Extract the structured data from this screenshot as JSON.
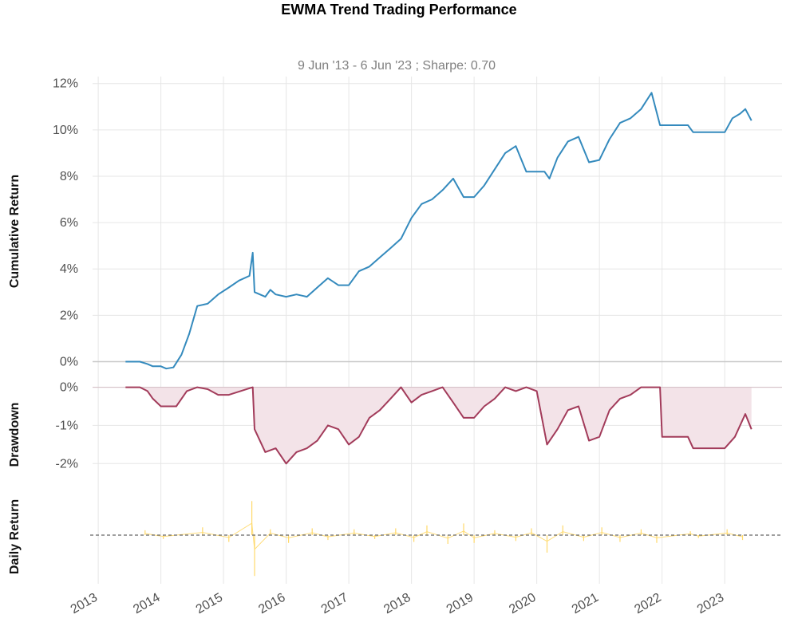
{
  "chart_data": [
    {
      "panel": "cumulative_return",
      "type": "line",
      "title": "EWMA Trend Trading Performance",
      "subtitle": "9 Jun '13 -  6 Jun '23 ;  Sharpe: 0.70",
      "ylabel": "Cumulative Return",
      "ylim": [
        -0.5,
        12.3
      ],
      "yticks": [
        "0%",
        "2%",
        "4%",
        "6%",
        "8%",
        "10%",
        "12%"
      ],
      "ytick_values": [
        0,
        2,
        4,
        6,
        8,
        10,
        12
      ],
      "grid": true,
      "color": "#348ABD",
      "x": [
        "2013-06-09",
        "2013-09-01",
        "2013-10-15",
        "2013-11-15",
        "2014-01-01",
        "2014-02-01",
        "2014-03-15",
        "2014-05-01",
        "2014-06-15",
        "2014-08-01",
        "2014-10-01",
        "2014-12-01",
        "2015-02-01",
        "2015-04-01",
        "2015-06-01",
        "2015-06-20",
        "2015-07-01",
        "2015-09-01",
        "2015-10-01",
        "2015-11-01",
        "2016-01-01",
        "2016-03-01",
        "2016-05-01",
        "2016-07-01",
        "2016-09-01",
        "2016-11-01",
        "2017-01-01",
        "2017-03-01",
        "2017-05-01",
        "2017-07-01",
        "2017-09-01",
        "2017-11-01",
        "2018-01-01",
        "2018-03-01",
        "2018-05-01",
        "2018-07-01",
        "2018-09-01",
        "2018-11-01",
        "2019-01-01",
        "2019-03-01",
        "2019-05-01",
        "2019-07-01",
        "2019-09-01",
        "2019-11-01",
        "2020-01-01",
        "2020-02-15",
        "2020-03-15",
        "2020-05-01",
        "2020-07-01",
        "2020-09-01",
        "2020-11-01",
        "2021-01-01",
        "2021-03-01",
        "2021-05-01",
        "2021-07-01",
        "2021-09-01",
        "2021-11-01",
        "2021-12-20",
        "2022-01-01",
        "2022-03-01",
        "2022-06-01",
        "2022-07-01",
        "2022-09-01",
        "2022-11-01",
        "2023-01-01",
        "2023-02-15",
        "2023-04-01",
        "2023-05-01",
        "2023-06-06"
      ],
      "values": [
        0.0,
        0.0,
        -0.1,
        -0.2,
        -0.2,
        -0.3,
        -0.25,
        0.3,
        1.2,
        2.4,
        2.5,
        2.9,
        3.2,
        3.5,
        3.7,
        4.7,
        3.0,
        2.8,
        3.1,
        2.9,
        2.8,
        2.9,
        2.8,
        3.2,
        3.6,
        3.3,
        3.3,
        3.9,
        4.1,
        4.5,
        4.9,
        5.3,
        6.2,
        6.8,
        7.0,
        7.4,
        7.9,
        7.1,
        7.1,
        7.6,
        8.3,
        9.0,
        9.3,
        8.2,
        8.2,
        8.2,
        7.9,
        8.8,
        9.5,
        9.7,
        8.6,
        8.7,
        9.6,
        10.3,
        10.5,
        10.9,
        11.6,
        10.2,
        10.2,
        10.2,
        10.2,
        9.9,
        9.9,
        9.9,
        9.9,
        10.5,
        10.7,
        10.9,
        10.4
      ]
    },
    {
      "panel": "drawdown",
      "type": "area",
      "ylabel": "Drawdown",
      "ylim": [
        -2.6,
        0.2
      ],
      "yticks": [
        "0%",
        "-1%",
        "-2%"
      ],
      "ytick_values": [
        0,
        -1,
        -2
      ],
      "grid": true,
      "color": "#A23B5A",
      "fill": "#F3E3E8",
      "x": [
        "2013-06-09",
        "2013-09-01",
        "2013-10-15",
        "2013-11-15",
        "2014-01-01",
        "2014-04-01",
        "2014-06-01",
        "2014-08-01",
        "2014-10-01",
        "2014-12-01",
        "2015-02-01",
        "2015-06-20",
        "2015-07-01",
        "2015-09-01",
        "2015-11-01",
        "2016-01-01",
        "2016-03-01",
        "2016-05-01",
        "2016-07-01",
        "2016-09-01",
        "2016-11-01",
        "2017-01-01",
        "2017-03-01",
        "2017-05-01",
        "2017-07-01",
        "2017-09-01",
        "2017-11-01",
        "2018-01-01",
        "2018-03-01",
        "2018-05-01",
        "2018-07-01",
        "2018-09-01",
        "2018-11-01",
        "2019-01-01",
        "2019-03-01",
        "2019-05-01",
        "2019-07-01",
        "2019-09-01",
        "2019-11-01",
        "2020-01-01",
        "2020-03-01",
        "2020-05-01",
        "2020-07-01",
        "2020-09-01",
        "2020-11-01",
        "2021-01-01",
        "2021-03-01",
        "2021-05-01",
        "2021-07-01",
        "2021-09-01",
        "2021-11-01",
        "2021-12-20",
        "2022-01-01",
        "2022-06-01",
        "2022-07-01",
        "2022-11-01",
        "2023-01-01",
        "2023-03-01",
        "2023-05-01",
        "2023-06-06"
      ],
      "values": [
        0.0,
        0.0,
        -0.1,
        -0.3,
        -0.5,
        -0.5,
        -0.1,
        0.0,
        -0.05,
        -0.2,
        -0.2,
        0.0,
        -1.1,
        -1.7,
        -1.6,
        -2.0,
        -1.7,
        -1.6,
        -1.4,
        -1.0,
        -1.1,
        -1.5,
        -1.3,
        -0.8,
        -0.6,
        -0.3,
        0.0,
        -0.4,
        -0.2,
        -0.1,
        0.0,
        -0.4,
        -0.8,
        -0.8,
        -0.5,
        -0.3,
        0.0,
        -0.1,
        0.0,
        -0.1,
        -1.5,
        -1.1,
        -0.6,
        -0.5,
        -1.4,
        -1.3,
        -0.6,
        -0.3,
        -0.2,
        0.0,
        0.0,
        0.0,
        -1.3,
        -1.3,
        -1.6,
        -1.6,
        -1.6,
        -1.3,
        -0.7,
        -1.1
      ]
    },
    {
      "panel": "daily_return",
      "type": "line",
      "ylabel": "Daily Return",
      "color": "#FFD96A",
      "baseline_color": "#666666",
      "ylim": [
        -0.5,
        0.5
      ],
      "x": [
        "2013-10-01",
        "2014-01-15",
        "2014-04-01",
        "2014-09-01",
        "2015-02-01",
        "2015-06-15",
        "2015-07-01",
        "2015-10-01",
        "2016-01-15",
        "2016-06-01",
        "2016-09-01",
        "2017-02-01",
        "2017-06-01",
        "2017-10-01",
        "2018-01-15",
        "2018-04-01",
        "2018-08-01",
        "2018-11-01",
        "2019-01-01",
        "2019-05-01",
        "2019-09-01",
        "2019-12-01",
        "2020-03-01",
        "2020-06-01",
        "2020-10-01",
        "2021-01-15",
        "2021-05-01",
        "2021-09-01",
        "2021-12-01",
        "2022-06-15",
        "2022-08-01",
        "2023-01-15",
        "2023-04-15"
      ],
      "values": [
        0.05,
        -0.04,
        0.0,
        0.08,
        -0.07,
        0.35,
        -0.42,
        0.06,
        -0.08,
        0.07,
        -0.05,
        0.06,
        -0.04,
        0.07,
        -0.07,
        0.1,
        -0.09,
        0.12,
        -0.08,
        0.05,
        -0.06,
        0.07,
        -0.18,
        0.1,
        -0.06,
        0.08,
        -0.07,
        0.06,
        -0.08,
        0.04,
        -0.03,
        0.06,
        -0.05
      ]
    }
  ],
  "x_axis": {
    "ticks": [
      "2013",
      "2014",
      "2015",
      "2016",
      "2017",
      "2018",
      "2019",
      "2020",
      "2021",
      "2022",
      "2023"
    ],
    "range": [
      "2012-11-15",
      "2023-12-01"
    ]
  }
}
